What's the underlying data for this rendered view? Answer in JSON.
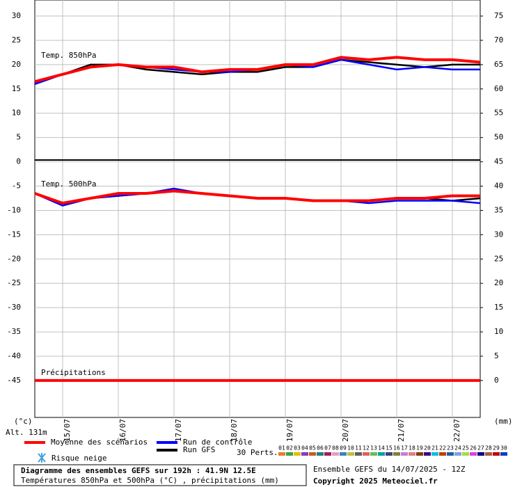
{
  "chart_data": {
    "type": "line",
    "x": [
      0,
      12,
      24,
      36,
      48,
      60,
      72,
      84,
      96,
      108,
      120,
      132,
      144,
      156,
      168,
      180,
      192
    ],
    "xlim": [
      0,
      192
    ],
    "xticks": [
      {
        "value": 12,
        "label": "15/07"
      },
      {
        "value": 36,
        "label": "16/07"
      },
      {
        "value": 60,
        "label": "17/07"
      },
      {
        "value": 84,
        "label": "18/07"
      },
      {
        "value": 108,
        "label": "19/07"
      },
      {
        "value": 132,
        "label": "20/07"
      },
      {
        "value": 156,
        "label": "21/07"
      },
      {
        "value": 180,
        "label": "22/07"
      }
    ],
    "ylim": [
      -52.6,
      33.3
    ],
    "yticks": [
      30,
      25,
      20,
      15,
      10,
      5,
      0,
      -5,
      -10,
      -15,
      -20,
      -25,
      -30,
      -35,
      -40,
      -45
    ],
    "y2lim": [
      -7.6,
      78.3
    ],
    "y2ticks": [
      75,
      70,
      65,
      60,
      55,
      50,
      45,
      40,
      35,
      30,
      25,
      20,
      15,
      10,
      5,
      0
    ],
    "ylabel": "(°c)",
    "y2label": "(mm)",
    "altitude": "Alt. 131m",
    "panel_labels": [
      "Temp. 850hPa",
      "Temp. 500hPa",
      "Précipitations"
    ],
    "series": [
      {
        "name": "Moyenne des scénarios",
        "color": "#ff0000",
        "values": [
          16.5,
          18,
          19.5,
          20,
          19.5,
          19.5,
          18.5,
          19,
          19,
          20,
          20,
          21.5,
          21,
          21.5,
          21,
          21,
          20.5
        ]
      },
      {
        "name": "Run de contrôle",
        "color": "#0000ff",
        "values": [
          16,
          18,
          19.5,
          20,
          19.5,
          19,
          18.5,
          18.5,
          19,
          20,
          19.5,
          21,
          20,
          19,
          19.5,
          19,
          19
        ]
      },
      {
        "name": "Run GFS",
        "color": "#000000",
        "values": [
          16,
          18,
          20,
          20,
          19,
          18.5,
          18,
          18.5,
          18.5,
          19.5,
          19.5,
          21,
          20.5,
          20,
          19.5,
          20,
          20
        ]
      },
      {
        "name": "Moyenne des scénarios",
        "color": "#ff0000",
        "values": [
          -6.5,
          -8.5,
          -7.5,
          -6.5,
          -6.5,
          -6,
          -6.5,
          -7,
          -7.5,
          -7.5,
          -8,
          -8,
          -8,
          -7.5,
          -7.5,
          -7,
          -7
        ]
      },
      {
        "name": "Run de contrôle",
        "color": "#0000ff",
        "values": [
          -6.5,
          -9,
          -7.5,
          -7,
          -6.5,
          -5.5,
          -6.5,
          -7,
          -7.5,
          -7.5,
          -8,
          -8,
          -8.5,
          -8,
          -8,
          -8,
          -8.5
        ]
      },
      {
        "name": "Run GFS",
        "color": "#000000",
        "values": [
          -6.5,
          -9,
          -7.5,
          -7,
          -6.5,
          -6,
          -6.5,
          -7,
          -7.5,
          -7.5,
          -8,
          -8,
          -8,
          -7.5,
          -7.5,
          -8,
          -7.5
        ]
      },
      {
        "name": "Moyenne des scénarios",
        "color": "#ff0000",
        "axis": "y2",
        "values": [
          0,
          0,
          0,
          0,
          0,
          0,
          0,
          0,
          0,
          0,
          0,
          0,
          0,
          0,
          0,
          0,
          0
        ]
      }
    ],
    "legend_extra": {
      "perts": "30 Perts.",
      "snow": "Risque neige"
    },
    "perturbations": [
      {
        "name": "01",
        "color": "#e08030"
      },
      {
        "name": "02",
        "color": "#40a040"
      },
      {
        "name": "03",
        "color": "#e0c000"
      },
      {
        "name": "04",
        "color": "#8040c0"
      },
      {
        "name": "05",
        "color": "#c06020"
      },
      {
        "name": "06",
        "color": "#208080"
      },
      {
        "name": "07",
        "color": "#a02060"
      },
      {
        "name": "08",
        "color": "#e0a0c0"
      },
      {
        "name": "09",
        "color": "#4080c0"
      },
      {
        "name": "10",
        "color": "#c0c040"
      },
      {
        "name": "11",
        "color": "#606060"
      },
      {
        "name": "12",
        "color": "#e06060"
      },
      {
        "name": "13",
        "color": "#60c060"
      },
      {
        "name": "14",
        "color": "#00a0a0"
      },
      {
        "name": "15",
        "color": "#404080"
      },
      {
        "name": "16",
        "color": "#808040"
      },
      {
        "name": "17",
        "color": "#c080e0"
      },
      {
        "name": "18",
        "color": "#e08080"
      },
      {
        "name": "19",
        "color": "#804000"
      },
      {
        "name": "20",
        "color": "#400080"
      },
      {
        "name": "21",
        "color": "#00c0e0"
      },
      {
        "name": "22",
        "color": "#c04000"
      },
      {
        "name": "23",
        "color": "#2060a0"
      },
      {
        "name": "24",
        "color": "#80a0e0"
      },
      {
        "name": "25",
        "color": "#a0e040"
      },
      {
        "name": "26",
        "color": "#e040e0"
      },
      {
        "name": "27",
        "color": "#000080"
      },
      {
        "name": "28",
        "color": "#a06040"
      },
      {
        "name": "29",
        "color": "#c00000"
      },
      {
        "name": "30",
        "color": "#0040c0"
      }
    ],
    "title": "Diagramme des ensembles GEFS sur 192h : 41.9N 12.5E",
    "subtitle": "Températures 850hPa et 500hPa (°C) , précipitations (mm)",
    "run_info": "Ensemble GEFS du 14/07/2025 - 12Z",
    "copyright": "Copyright 2025 Meteociel.fr"
  }
}
